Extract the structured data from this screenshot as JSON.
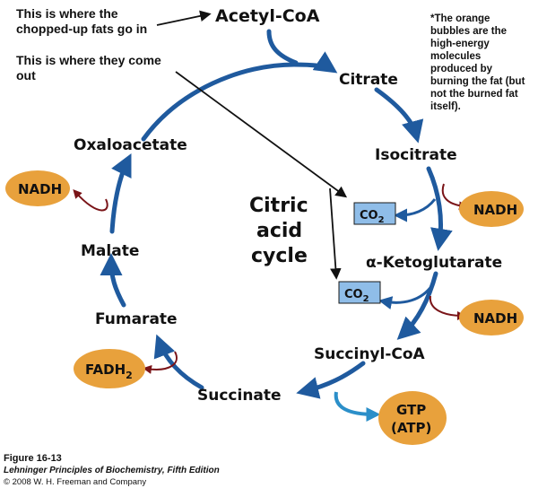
{
  "annotations": {
    "fats_in_line1": "This is where the",
    "fats_in_line2": "chopped-up fats go in",
    "fats_out_line1": "This is where they come",
    "fats_out_line2": "out",
    "side_note": [
      "*The orange",
      "bubbles are the",
      "high-energy",
      "molecules",
      "produced by",
      "burning the fat (but",
      "not the burned fat",
      "itself)."
    ]
  },
  "metabolites": {
    "acetyl_coa": "Acetyl-CoA",
    "citrate": "Citrate",
    "isocitrate": "Isocitrate",
    "alpha_ketoglutarate": "α-Ketoglutarate",
    "succinyl_coa": "Succinyl-CoA",
    "succinate": "Succinate",
    "fumarate": "Fumarate",
    "malate": "Malate",
    "oxaloacetate": "Oxaloacetate"
  },
  "center_label": {
    "line1": "Citric",
    "line2": "acid",
    "line3": "cycle"
  },
  "products": {
    "nadh_isocitrate": "NADH",
    "nadh_ketoglutarate": "NADH",
    "nadh_malate": "NADH",
    "fadh2_base": "FADH",
    "fadh2_sub": "2",
    "gtp_line1": "GTP",
    "gtp_line2": "(ATP)",
    "co2_first_base": "CO",
    "co2_first_sub": "2",
    "co2_second_base": "CO",
    "co2_second_sub": "2"
  },
  "figure": {
    "title": "Figure 16-13",
    "subtitle": "Lehninger Principles of Biochemistry, Fifth Edition",
    "copyright": "© 2008 W. H. Freeman and Company"
  },
  "colors": {
    "cycle_blue": "#1f5a9e",
    "side_arrow_red": "#7a1418",
    "bubble_orange": "#e8a13c",
    "co2_box": "#8fbde8",
    "gtp_arrow": "#2b8fc9"
  }
}
